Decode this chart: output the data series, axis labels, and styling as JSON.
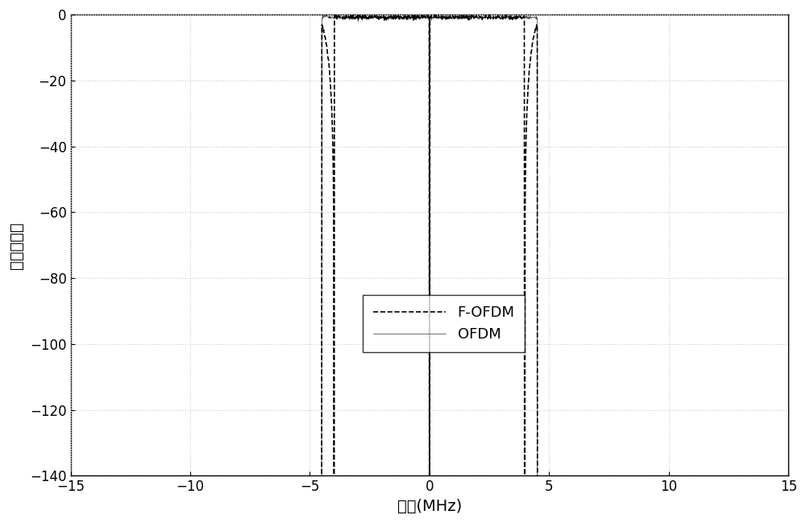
{
  "xlim": [
    -15,
    15
  ],
  "ylim": [
    -140,
    0
  ],
  "xticks": [
    -15,
    -10,
    -5,
    0,
    5,
    10,
    15
  ],
  "yticks": [
    0,
    -20,
    -40,
    -60,
    -80,
    -100,
    -120,
    -140
  ],
  "xlabel": "频域(MHz)",
  "ylabel": "功率谱密度",
  "legend_labels": [
    "F-OFDM",
    "OFDM"
  ],
  "background_color": "#ffffff",
  "grid_color": "#cccccc",
  "line_color": "#000000",
  "band_edge": 10.0,
  "seed": 42
}
